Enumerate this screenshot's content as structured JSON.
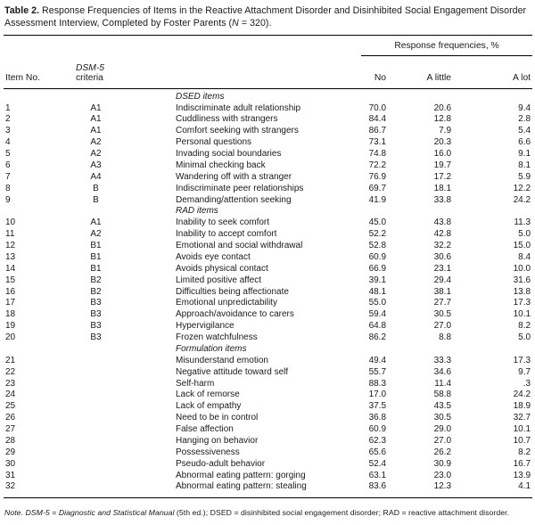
{
  "title": {
    "label": "Table 2.",
    "before_n": " Response Frequencies of Items in the Reactive Attachment Disorder and Disinhibited Social Engagement Disorder Assessment Interview, Completed by Foster Parents (",
    "n": "N",
    "after_n": " = 320)."
  },
  "header": {
    "item_no": "Item No.",
    "criteria_italic": "DSM-5",
    "criteria_rest": " criteria",
    "span": "Response frequencies, %",
    "no": "No",
    "a_little": "A little",
    "a_lot": "A lot"
  },
  "rows": [
    {
      "type": "section",
      "label": "DSED items"
    },
    {
      "type": "item",
      "no": "1",
      "criteria": "A1",
      "label": "Indiscriminate adult relationship",
      "pct_no": "70.0",
      "pct_little": "20.6",
      "pct_lot": "9.4"
    },
    {
      "type": "item",
      "no": "2",
      "criteria": "A1",
      "label": "Cuddliness with strangers",
      "pct_no": "84.4",
      "pct_little": "12.8",
      "pct_lot": "2.8"
    },
    {
      "type": "item",
      "no": "3",
      "criteria": "A1",
      "label": "Comfort seeking with strangers",
      "pct_no": "86.7",
      "pct_little": "7.9",
      "pct_lot": "5.4"
    },
    {
      "type": "item",
      "no": "4",
      "criteria": "A2",
      "label": "Personal questions",
      "pct_no": "73.1",
      "pct_little": "20.3",
      "pct_lot": "6.6"
    },
    {
      "type": "item",
      "no": "5",
      "criteria": "A2",
      "label": "Invading social boundaries",
      "pct_no": "74.8",
      "pct_little": "16.0",
      "pct_lot": "9.1"
    },
    {
      "type": "item",
      "no": "6",
      "criteria": "A3",
      "label": "Minimal checking back",
      "pct_no": "72.2",
      "pct_little": "19.7",
      "pct_lot": "8.1"
    },
    {
      "type": "item",
      "no": "7",
      "criteria": "A4",
      "label": "Wandering off with a stranger",
      "pct_no": "76.9",
      "pct_little": "17.2",
      "pct_lot": "5.9"
    },
    {
      "type": "item",
      "no": "8",
      "criteria": "B",
      "label": "Indiscriminate peer relationships",
      "pct_no": "69.7",
      "pct_little": "18.1",
      "pct_lot": "12.2"
    },
    {
      "type": "item",
      "no": "9",
      "criteria": "B",
      "label": "Demanding/attention seeking",
      "pct_no": "41.9",
      "pct_little": "33.8",
      "pct_lot": "24.2"
    },
    {
      "type": "section",
      "label": "RAD items"
    },
    {
      "type": "item",
      "no": "10",
      "criteria": "A1",
      "label": "Inability to seek comfort",
      "pct_no": "45.0",
      "pct_little": "43.8",
      "pct_lot": "11.3"
    },
    {
      "type": "item",
      "no": "11",
      "criteria": "A2",
      "label": "Inability to accept comfort",
      "pct_no": "52.2",
      "pct_little": "42.8",
      "pct_lot": "5.0"
    },
    {
      "type": "item",
      "no": "12",
      "criteria": "B1",
      "label": "Emotional and social withdrawal",
      "pct_no": "52.8",
      "pct_little": "32.2",
      "pct_lot": "15.0"
    },
    {
      "type": "item",
      "no": "13",
      "criteria": "B1",
      "label": "Avoids eye contact",
      "pct_no": "60.9",
      "pct_little": "30.6",
      "pct_lot": "8.4"
    },
    {
      "type": "item",
      "no": "14",
      "criteria": "B1",
      "label": "Avoids physical contact",
      "pct_no": "66.9",
      "pct_little": "23.1",
      "pct_lot": "10.0"
    },
    {
      "type": "item",
      "no": "15",
      "criteria": "B2",
      "label": "Limited positive affect",
      "pct_no": "39.1",
      "pct_little": "29.4",
      "pct_lot": "31.6"
    },
    {
      "type": "item",
      "no": "16",
      "criteria": "B2",
      "label": "Difficulties being affectionate",
      "pct_no": "48.1",
      "pct_little": "38.1",
      "pct_lot": "13.8"
    },
    {
      "type": "item",
      "no": "17",
      "criteria": "B3",
      "label": "Emotional unpredictability",
      "pct_no": "55.0",
      "pct_little": "27.7",
      "pct_lot": "17.3"
    },
    {
      "type": "item",
      "no": "18",
      "criteria": "B3",
      "label": "Approach/avoidance to carers",
      "pct_no": "59.4",
      "pct_little": "30.5",
      "pct_lot": "10.1"
    },
    {
      "type": "item",
      "no": "19",
      "criteria": "B3",
      "label": "Hypervigilance",
      "pct_no": "64.8",
      "pct_little": "27.0",
      "pct_lot": "8.2"
    },
    {
      "type": "item",
      "no": "20",
      "criteria": "B3",
      "label": "Frozen watchfulness",
      "pct_no": "86.2",
      "pct_little": "8.8",
      "pct_lot": "5.0"
    },
    {
      "type": "section",
      "label": "Formulation items"
    },
    {
      "type": "item",
      "no": "21",
      "criteria": "",
      "label": "Misunderstand emotion",
      "pct_no": "49.4",
      "pct_little": "33.3",
      "pct_lot": "17.3"
    },
    {
      "type": "item",
      "no": "22",
      "criteria": "",
      "label": "Negative attitude toward self",
      "pct_no": "55.7",
      "pct_little": "34.6",
      "pct_lot": "9.7"
    },
    {
      "type": "item",
      "no": "23",
      "criteria": "",
      "label": "Self-harm",
      "pct_no": "88.3",
      "pct_little": "11.4",
      "pct_lot": ".3"
    },
    {
      "type": "item",
      "no": "24",
      "criteria": "",
      "label": "Lack of remorse",
      "pct_no": "17.0",
      "pct_little": "58.8",
      "pct_lot": "24.2"
    },
    {
      "type": "item",
      "no": "25",
      "criteria": "",
      "label": "Lack of empathy",
      "pct_no": "37.5",
      "pct_little": "43.5",
      "pct_lot": "18.9"
    },
    {
      "type": "item",
      "no": "26",
      "criteria": "",
      "label": "Need to be in control",
      "pct_no": "36.8",
      "pct_little": "30.5",
      "pct_lot": "32.7"
    },
    {
      "type": "item",
      "no": "27",
      "criteria": "",
      "label": "False affection",
      "pct_no": "60.9",
      "pct_little": "29.0",
      "pct_lot": "10.1"
    },
    {
      "type": "item",
      "no": "28",
      "criteria": "",
      "label": "Hanging on behavior",
      "pct_no": "62.3",
      "pct_little": "27.0",
      "pct_lot": "10.7"
    },
    {
      "type": "item",
      "no": "29",
      "criteria": "",
      "label": "Possessiveness",
      "pct_no": "65.6",
      "pct_little": "26.2",
      "pct_lot": "8.2"
    },
    {
      "type": "item",
      "no": "30",
      "criteria": "",
      "label": "Pseudo-adult behavior",
      "pct_no": "52.4",
      "pct_little": "30.9",
      "pct_lot": "16.7"
    },
    {
      "type": "item",
      "no": "31",
      "criteria": "",
      "label": "Abnormal eating pattern: gorging",
      "pct_no": "63.1",
      "pct_little": "23.0",
      "pct_lot": "13.9"
    },
    {
      "type": "item",
      "no": "32",
      "criteria": "",
      "label": "Abnormal eating pattern: stealing",
      "pct_no": "83.6",
      "pct_little": "12.3",
      "pct_lot": "4.1"
    }
  ],
  "footnote": {
    "segments": [
      {
        "text": "Note.",
        "italic": true
      },
      {
        "text": " ",
        "italic": false
      },
      {
        "text": "DSM-5",
        "italic": true
      },
      {
        "text": " = ",
        "italic": false
      },
      {
        "text": "Diagnostic and Statistical Manual",
        "italic": true
      },
      {
        "text": " (5th ed.); DSED = disinhibited social engagement disorder; RAD = reactive attachment disorder.",
        "italic": false
      }
    ]
  }
}
